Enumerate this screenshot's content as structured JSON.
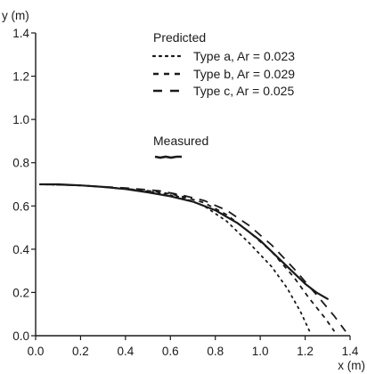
{
  "chart_data": {
    "type": "line",
    "title": "",
    "xlabel": "x (m)",
    "ylabel": "y (m)",
    "xlim": [
      0.0,
      1.4
    ],
    "ylim": [
      0.0,
      1.4
    ],
    "xticks": [
      "0.0",
      "0.2",
      "0.4",
      "0.6",
      "0.8",
      "1.0",
      "1.2",
      "1.4"
    ],
    "yticks": [
      "0.0",
      "0.2",
      "0.4",
      "0.6",
      "0.8",
      "1.0",
      "1.2",
      "1.4"
    ],
    "grid": false,
    "legend_placement": "top-right",
    "legend": {
      "predicted_heading": "Predicted",
      "measured_heading": "Measured",
      "entries": [
        {
          "label": "Type a, Ar = 0.023",
          "style": "dotted"
        },
        {
          "label": "Type b, Ar = 0.029",
          "style": "short-dash"
        },
        {
          "label": "Type c, Ar = 0.025",
          "style": "long-dash"
        }
      ]
    },
    "series": [
      {
        "name": "Type a, Ar = 0.023",
        "style": "dotted",
        "x": [
          0.02,
          0.2,
          0.4,
          0.55,
          0.65,
          0.75,
          0.85,
          0.95,
          1.05,
          1.12,
          1.18,
          1.22
        ],
        "y": [
          0.7,
          0.695,
          0.68,
          0.66,
          0.64,
          0.6,
          0.53,
          0.43,
          0.32,
          0.22,
          0.11,
          0.02
        ]
      },
      {
        "name": "Type b, Ar = 0.029",
        "style": "short-dash",
        "x": [
          0.02,
          0.2,
          0.4,
          0.55,
          0.65,
          0.75,
          0.85,
          0.95,
          1.05,
          1.15,
          1.22,
          1.29,
          1.33
        ],
        "y": [
          0.7,
          0.695,
          0.68,
          0.665,
          0.645,
          0.615,
          0.56,
          0.48,
          0.39,
          0.27,
          0.17,
          0.08,
          0.02
        ]
      },
      {
        "name": "Type c, Ar = 0.025",
        "style": "long-dash",
        "x": [
          0.02,
          0.2,
          0.4,
          0.55,
          0.65,
          0.75,
          0.85,
          0.95,
          1.05,
          1.15,
          1.25,
          1.33,
          1.38
        ],
        "y": [
          0.7,
          0.695,
          0.683,
          0.67,
          0.65,
          0.625,
          0.58,
          0.51,
          0.42,
          0.31,
          0.19,
          0.09,
          0.02
        ]
      },
      {
        "name": "Measured",
        "style": "solid",
        "x": [
          0.02,
          0.1,
          0.2,
          0.3,
          0.4,
          0.5,
          0.6,
          0.7,
          0.8,
          0.9,
          1.0,
          1.08,
          1.15,
          1.2,
          1.25,
          1.3
        ],
        "y": [
          0.7,
          0.7,
          0.695,
          0.688,
          0.678,
          0.663,
          0.645,
          0.62,
          0.58,
          0.52,
          0.44,
          0.36,
          0.29,
          0.24,
          0.2,
          0.17
        ]
      }
    ]
  }
}
